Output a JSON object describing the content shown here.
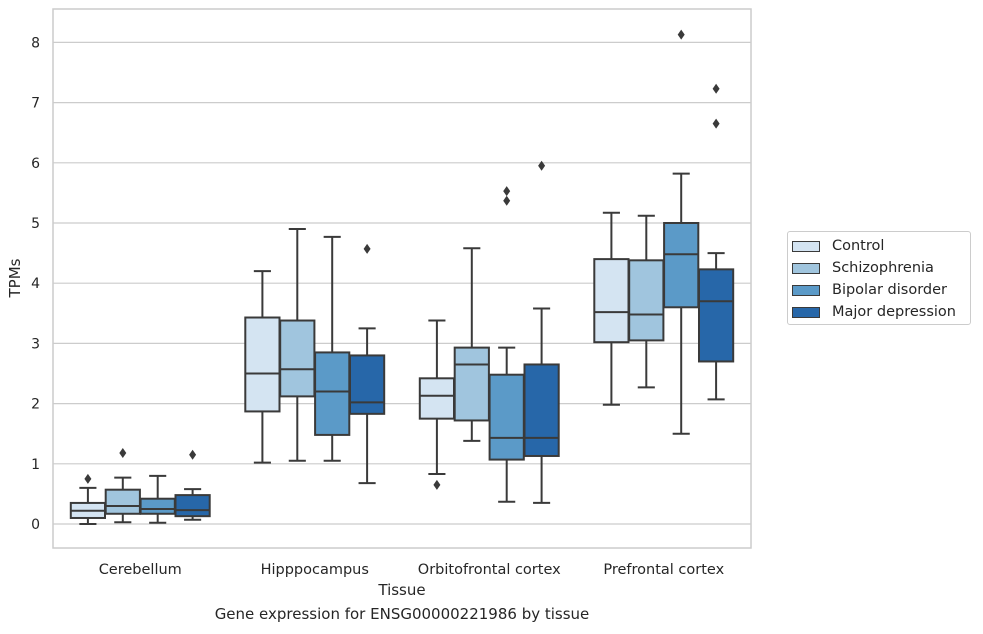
{
  "chart_data": {
    "type": "box",
    "caption": "Gene expression for ENSG00000221986 by tissue",
    "xlabel": "Tissue",
    "ylabel": "TPMs",
    "ylim": [
      -0.4,
      8.55
    ],
    "yticks": [
      0,
      1,
      2,
      3,
      4,
      5,
      6,
      7,
      8
    ],
    "grid": "horizontal",
    "legend_position": "right",
    "categories": [
      "Cerebellum",
      "Hipppocampus",
      "Orbitofrontal cortex",
      "Prefrontal cortex"
    ],
    "series": [
      {
        "name": "Control",
        "color": "#d4e4f2",
        "boxes": [
          {
            "whisker_low": 0.0,
            "q1": 0.1,
            "median": 0.22,
            "q3": 0.35,
            "whisker_high": 0.6,
            "outliers": [
              0.75
            ]
          },
          {
            "whisker_low": 1.02,
            "q1": 1.87,
            "median": 2.5,
            "q3": 3.43,
            "whisker_high": 4.2,
            "outliers": []
          },
          {
            "whisker_low": 0.83,
            "q1": 1.75,
            "median": 2.13,
            "q3": 2.42,
            "whisker_high": 3.38,
            "outliers": [
              0.65
            ]
          },
          {
            "whisker_low": 1.98,
            "q1": 3.02,
            "median": 3.52,
            "q3": 4.4,
            "whisker_high": 5.17,
            "outliers": []
          }
        ]
      },
      {
        "name": "Schizophrenia",
        "color": "#a0c5de",
        "boxes": [
          {
            "whisker_low": 0.03,
            "q1": 0.17,
            "median": 0.3,
            "q3": 0.57,
            "whisker_high": 0.77,
            "outliers": [
              1.18
            ]
          },
          {
            "whisker_low": 1.05,
            "q1": 2.12,
            "median": 2.57,
            "q3": 3.38,
            "whisker_high": 4.9,
            "outliers": []
          },
          {
            "whisker_low": 1.38,
            "q1": 1.72,
            "median": 2.65,
            "q3": 2.93,
            "whisker_high": 4.58,
            "outliers": []
          },
          {
            "whisker_low": 2.27,
            "q1": 3.05,
            "median": 3.48,
            "q3": 4.38,
            "whisker_high": 5.12,
            "outliers": []
          }
        ]
      },
      {
        "name": "Bipolar disorder",
        "color": "#5b9ac8",
        "boxes": [
          {
            "whisker_low": 0.02,
            "q1": 0.17,
            "median": 0.25,
            "q3": 0.42,
            "whisker_high": 0.8,
            "outliers": []
          },
          {
            "whisker_low": 1.05,
            "q1": 1.48,
            "median": 2.2,
            "q3": 2.85,
            "whisker_high": 4.77,
            "outliers": []
          },
          {
            "whisker_low": 0.37,
            "q1": 1.07,
            "median": 1.43,
            "q3": 2.48,
            "whisker_high": 2.93,
            "outliers": [
              5.37,
              5.53
            ]
          },
          {
            "whisker_low": 1.5,
            "q1": 3.6,
            "median": 4.48,
            "q3": 5.0,
            "whisker_high": 5.82,
            "outliers": [
              8.13
            ]
          }
        ]
      },
      {
        "name": "Major depression",
        "color": "#2767a9",
        "boxes": [
          {
            "whisker_low": 0.07,
            "q1": 0.13,
            "median": 0.23,
            "q3": 0.48,
            "whisker_high": 0.58,
            "outliers": [
              1.15
            ]
          },
          {
            "whisker_low": 0.68,
            "q1": 1.83,
            "median": 2.02,
            "q3": 2.8,
            "whisker_high": 3.25,
            "outliers": [
              4.57
            ]
          },
          {
            "whisker_low": 0.35,
            "q1": 1.13,
            "median": 1.43,
            "q3": 2.65,
            "whisker_high": 3.58,
            "outliers": [
              5.95
            ]
          },
          {
            "whisker_low": 2.07,
            "q1": 2.7,
            "median": 3.7,
            "q3": 4.23,
            "whisker_high": 4.5,
            "outliers": [
              6.65,
              7.23
            ]
          }
        ]
      }
    ]
  }
}
